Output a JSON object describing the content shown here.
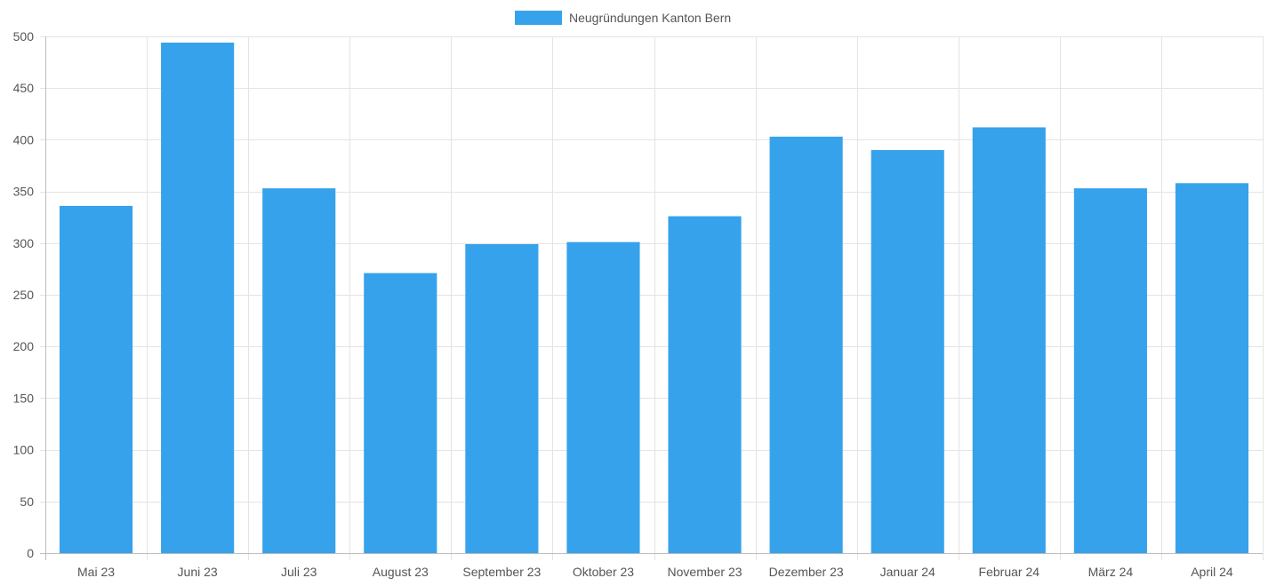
{
  "chart_data": {
    "type": "bar",
    "title": "",
    "xlabel": "",
    "ylabel": "",
    "categories": [
      "Mai 23",
      "Juni 23",
      "Juli 23",
      "August 23",
      "September 23",
      "Oktober 23",
      "November 23",
      "Dezember 23",
      "Januar 24",
      "Februar 24",
      "März 24",
      "April 24"
    ],
    "series": [
      {
        "name": "Neugründungen Kanton Bern",
        "color": "#36a2eb",
        "values": [
          336,
          494,
          353,
          271,
          299,
          301,
          326,
          403,
          390,
          412,
          353,
          358
        ]
      }
    ],
    "ylim": [
      0,
      500
    ],
    "yticks": [
      0,
      50,
      100,
      150,
      200,
      250,
      300,
      350,
      400,
      450,
      500
    ],
    "grid": true,
    "legend": "top-center"
  }
}
